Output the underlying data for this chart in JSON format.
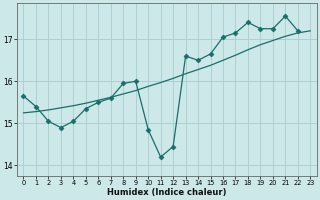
{
  "xlabel": "Humidex (Indice chaleur)",
  "background_color": "#cce8e8",
  "grid_color": "#aacccc",
  "line_color": "#1a6e6a",
  "xlim": [
    -0.5,
    23.5
  ],
  "ylim": [
    13.75,
    17.85
  ],
  "yticks": [
    14,
    15,
    16,
    17
  ],
  "xticks": [
    0,
    1,
    2,
    3,
    4,
    5,
    6,
    7,
    8,
    9,
    10,
    11,
    12,
    13,
    14,
    15,
    16,
    17,
    18,
    19,
    20,
    21,
    22,
    23
  ],
  "line1_x": [
    0,
    1,
    2,
    3,
    4,
    5,
    6,
    7,
    8,
    9,
    10,
    11,
    12,
    13,
    14,
    15,
    16,
    17,
    18,
    19,
    20,
    21,
    22
  ],
  "line1_y": [
    15.65,
    15.4,
    15.05,
    14.9,
    15.05,
    15.35,
    15.5,
    15.6,
    15.95,
    16.0,
    14.85,
    14.2,
    14.45,
    16.6,
    16.5,
    16.65,
    17.05,
    17.15,
    17.4,
    17.25,
    17.25,
    17.55,
    17.2
  ],
  "line2_x": [
    0,
    1,
    2,
    3,
    4,
    5,
    6,
    7,
    8,
    9,
    10,
    11,
    12,
    13,
    14,
    15,
    16,
    17,
    18,
    19,
    20,
    21,
    22,
    23
  ],
  "line2_y": [
    15.25,
    15.28,
    15.32,
    15.37,
    15.42,
    15.48,
    15.55,
    15.62,
    15.7,
    15.78,
    15.88,
    15.97,
    16.07,
    16.18,
    16.28,
    16.38,
    16.5,
    16.62,
    16.75,
    16.87,
    16.97,
    17.07,
    17.15,
    17.2
  ]
}
